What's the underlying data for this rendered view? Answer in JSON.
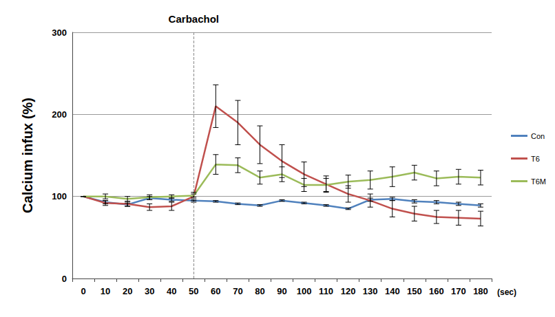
{
  "chart_data": {
    "type": "line",
    "x_label": "(sec)",
    "y_label": "Calcium infux (%)",
    "categories": [
      "0",
      "10",
      "20",
      "30",
      "40",
      "50",
      "60",
      "70",
      "80",
      "90",
      "100",
      "110",
      "120",
      "130",
      "140",
      "150",
      "160",
      "170",
      "180"
    ],
    "series": [
      {
        "name": "Con",
        "color": "#4f81bd",
        "values": [
          100,
          93,
          90,
          98,
          96,
          95,
          94,
          91,
          89,
          95,
          92,
          89,
          85,
          96,
          97,
          94,
          93,
          91,
          89
        ],
        "errors": [
          0,
          2,
          2,
          2,
          2,
          2,
          1,
          1,
          1,
          1,
          1,
          1,
          1,
          2,
          2,
          2,
          2,
          2,
          2
        ]
      },
      {
        "name": "T6",
        "color": "#c0504d",
        "values": [
          100,
          92,
          91,
          87,
          88,
          100,
          210,
          190,
          163,
          143,
          127,
          115,
          103,
          95,
          85,
          79,
          75,
          74,
          73
        ],
        "errors": [
          0,
          3,
          3,
          4,
          5,
          5,
          26,
          27,
          23,
          20,
          15,
          10,
          10,
          8,
          10,
          9,
          8,
          9,
          9
        ]
      },
      {
        "name": "T6M",
        "color": "#9bbb59",
        "values": [
          100,
          100,
          97,
          99,
          100,
          101,
          139,
          138,
          123,
          127,
          114,
          114,
          118,
          120,
          124,
          129,
          122,
          124,
          123
        ],
        "errors": [
          0,
          3,
          3,
          3,
          2,
          2,
          12,
          9,
          8,
          9,
          8,
          8,
          8,
          11,
          12,
          9,
          9,
          9,
          9
        ]
      }
    ],
    "annotations": [
      {
        "text": "Carbachol",
        "x": "50",
        "line_style": "dashed"
      }
    ],
    "ylim": [
      0,
      300
    ],
    "yticks": [
      0,
      100,
      200,
      300
    ],
    "grid": true,
    "legend": "right",
    "marker": "none"
  }
}
